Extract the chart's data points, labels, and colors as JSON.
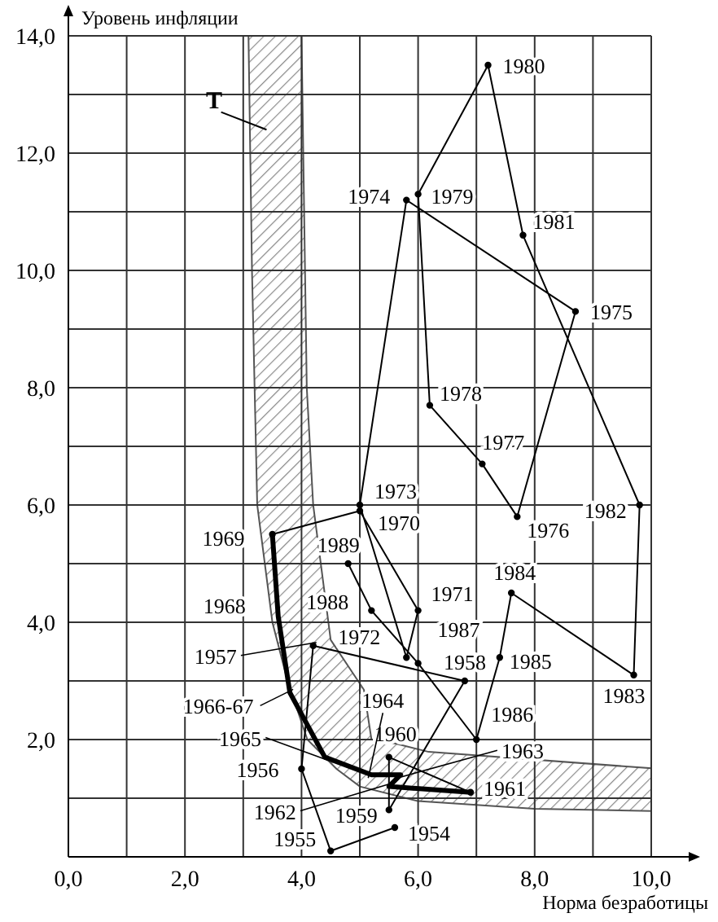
{
  "chart_data": {
    "type": "line",
    "xlabel": "Норма безработицы",
    "ylabel": "Уровень инфляции",
    "xlim": [
      0,
      10
    ],
    "ylim": [
      0,
      14
    ],
    "xticks": [
      {
        "value": 0,
        "label": "0,0"
      },
      {
        "value": 1,
        "label": null
      },
      {
        "value": 2,
        "label": "2,0"
      },
      {
        "value": 3,
        "label": null
      },
      {
        "value": 4,
        "label": "4,0"
      },
      {
        "value": 5,
        "label": null
      },
      {
        "value": 6,
        "label": "6,0"
      },
      {
        "value": 7,
        "label": null
      },
      {
        "value": 8,
        "label": "8,0"
      },
      {
        "value": 9,
        "label": null
      },
      {
        "value": 10,
        "label": "10,0"
      }
    ],
    "yticks": [
      {
        "value": 0,
        "label": null
      },
      {
        "value": 1,
        "label": null
      },
      {
        "value": 2,
        "label": "2,0"
      },
      {
        "value": 3,
        "label": null
      },
      {
        "value": 4,
        "label": "4,0"
      },
      {
        "value": 5,
        "label": null
      },
      {
        "value": 6,
        "label": "6,0"
      },
      {
        "value": 7,
        "label": null
      },
      {
        "value": 8,
        "label": "8,0"
      },
      {
        "value": 9,
        "label": null
      },
      {
        "value": 10,
        "label": "10,0"
      },
      {
        "value": 11,
        "label": null
      },
      {
        "value": 12,
        "label": "12,0"
      },
      {
        "value": 13,
        "label": null
      },
      {
        "value": 14,
        "label": "14,0"
      }
    ],
    "grid": true,
    "series": [
      {
        "color": "#000000",
        "marker": "circle",
        "x": [
          5.6,
          4.5,
          4.0,
          4.2,
          6.8,
          5.5,
          5.5,
          6.9
        ],
        "values": [
          0.5,
          0.1,
          1.5,
          3.6,
          3.0,
          0.8,
          1.7,
          1.1
        ]
      },
      {
        "color": "#000000",
        "marker": "none",
        "x": [
          6.9,
          5.5,
          5.7,
          5.2,
          4.4,
          3.8,
          3.6,
          3.5
        ],
        "values": [
          1.1,
          1.2,
          1.4,
          1.4,
          1.7,
          2.8,
          4.1,
          5.5
        ]
      },
      {
        "color": "#000000",
        "marker": "circle",
        "x": [
          3.5,
          5.0,
          6.0,
          5.8,
          5.0,
          5.8,
          8.7,
          7.7,
          7.1,
          6.2,
          6.0,
          7.2,
          7.8,
          9.8,
          9.7,
          7.6,
          7.4,
          7.0,
          6.0,
          5.2,
          4.8
        ],
        "values": [
          5.5,
          5.9,
          4.2,
          3.4,
          6.0,
          11.2,
          9.3,
          5.8,
          6.7,
          7.7,
          11.3,
          13.5,
          10.6,
          6.0,
          3.1,
          4.5,
          3.4,
          2.0,
          3.3,
          4.2,
          5.0
        ]
      }
    ],
    "annotations": [
      {
        "text": "1954",
        "x": 5.6,
        "y": 0.5
      },
      {
        "text": "1955",
        "x": 4.5,
        "y": 0.1
      },
      {
        "text": "1956",
        "x": 4.0,
        "y": 1.5
      },
      {
        "text": "1957",
        "x": 4.2,
        "y": 3.6
      },
      {
        "text": "1958",
        "x": 6.8,
        "y": 3.0
      },
      {
        "text": "1959",
        "x": 5.5,
        "y": 0.8
      },
      {
        "text": "1960",
        "x": 5.5,
        "y": 1.7
      },
      {
        "text": "1961",
        "x": 6.9,
        "y": 1.1
      },
      {
        "text": "1962",
        "x": 5.5,
        "y": 1.2
      },
      {
        "text": "1963",
        "x": 5.7,
        "y": 1.4
      },
      {
        "text": "1964",
        "x": 5.2,
        "y": 1.4
      },
      {
        "text": "1965",
        "x": 4.4,
        "y": 1.7
      },
      {
        "text": "1966-67",
        "x": 3.8,
        "y": 2.8
      },
      {
        "text": "1968",
        "x": 3.6,
        "y": 4.1
      },
      {
        "text": "1969",
        "x": 3.5,
        "y": 5.5
      },
      {
        "text": "1970",
        "x": 5.0,
        "y": 5.9
      },
      {
        "text": "1971",
        "x": 6.0,
        "y": 4.2
      },
      {
        "text": "1972",
        "x": 5.8,
        "y": 3.4
      },
      {
        "text": "1973",
        "x": 5.0,
        "y": 6.0
      },
      {
        "text": "1974",
        "x": 5.8,
        "y": 11.2
      },
      {
        "text": "1975",
        "x": 8.7,
        "y": 9.3
      },
      {
        "text": "1976",
        "x": 7.7,
        "y": 5.8
      },
      {
        "text": "1977",
        "x": 7.1,
        "y": 6.7
      },
      {
        "text": "1978",
        "x": 6.2,
        "y": 7.7
      },
      {
        "text": "1979",
        "x": 6.0,
        "y": 11.3
      },
      {
        "text": "1980",
        "x": 7.2,
        "y": 13.5
      },
      {
        "text": "1981",
        "x": 7.8,
        "y": 10.6
      },
      {
        "text": "1982",
        "x": 9.8,
        "y": 6.0
      },
      {
        "text": "1983",
        "x": 9.7,
        "y": 3.1
      },
      {
        "text": "1984",
        "x": 7.6,
        "y": 4.5
      },
      {
        "text": "1985",
        "x": 7.4,
        "y": 3.4
      },
      {
        "text": "1986",
        "x": 7.0,
        "y": 2.0
      },
      {
        "text": "1987",
        "x": 6.0,
        "y": 3.3
      },
      {
        "text": "1988",
        "x": 5.2,
        "y": 4.2
      },
      {
        "text": "1989",
        "x": 4.8,
        "y": 5.0
      },
      "T"
    ]
  }
}
